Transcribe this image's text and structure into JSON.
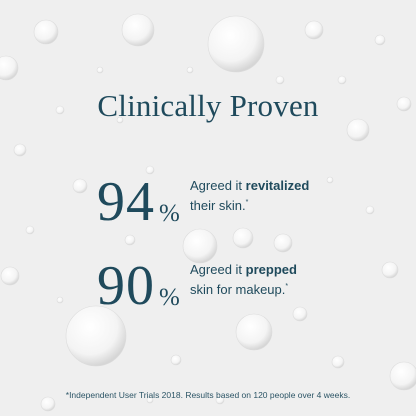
{
  "title": "Clinically Proven",
  "stats": [
    {
      "value": 94,
      "unit": "%",
      "lead": "Agreed it",
      "emphasis": "revitalized",
      "tail": "their skin.",
      "mark": "*"
    },
    {
      "value": 90,
      "unit": "%",
      "lead": "Agreed it",
      "emphasis": "prepped",
      "tail": "skin for makeup.",
      "mark": "*"
    }
  ],
  "footnote": "*Independent User Trials 2018. Results based on 120 people over 4 weeks."
}
